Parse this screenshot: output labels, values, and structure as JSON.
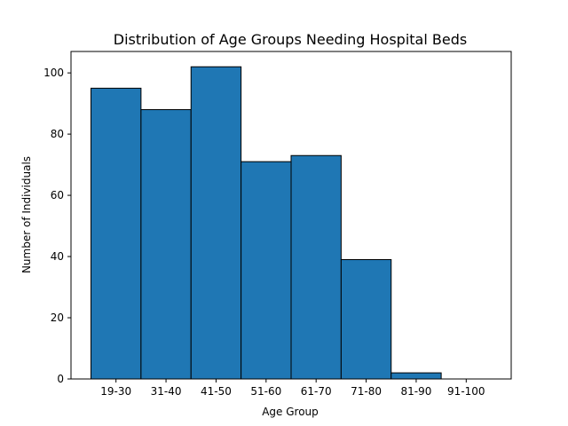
{
  "chart_data": {
    "type": "bar",
    "title": "Distribution of Age Groups Needing Hospital Beds",
    "xlabel": "Age Group",
    "ylabel": "Number of Individuals",
    "categories": [
      "19-30",
      "31-40",
      "41-50",
      "51-60",
      "61-70",
      "71-80",
      "81-90",
      "91-100"
    ],
    "values": [
      95,
      88,
      102,
      71,
      73,
      39,
      2,
      0
    ],
    "ylim": [
      0,
      107
    ],
    "yticks": [
      0,
      20,
      40,
      60,
      80,
      100
    ],
    "grid": false,
    "bar_color": "#1f77b4",
    "edge_color": "#000000"
  }
}
